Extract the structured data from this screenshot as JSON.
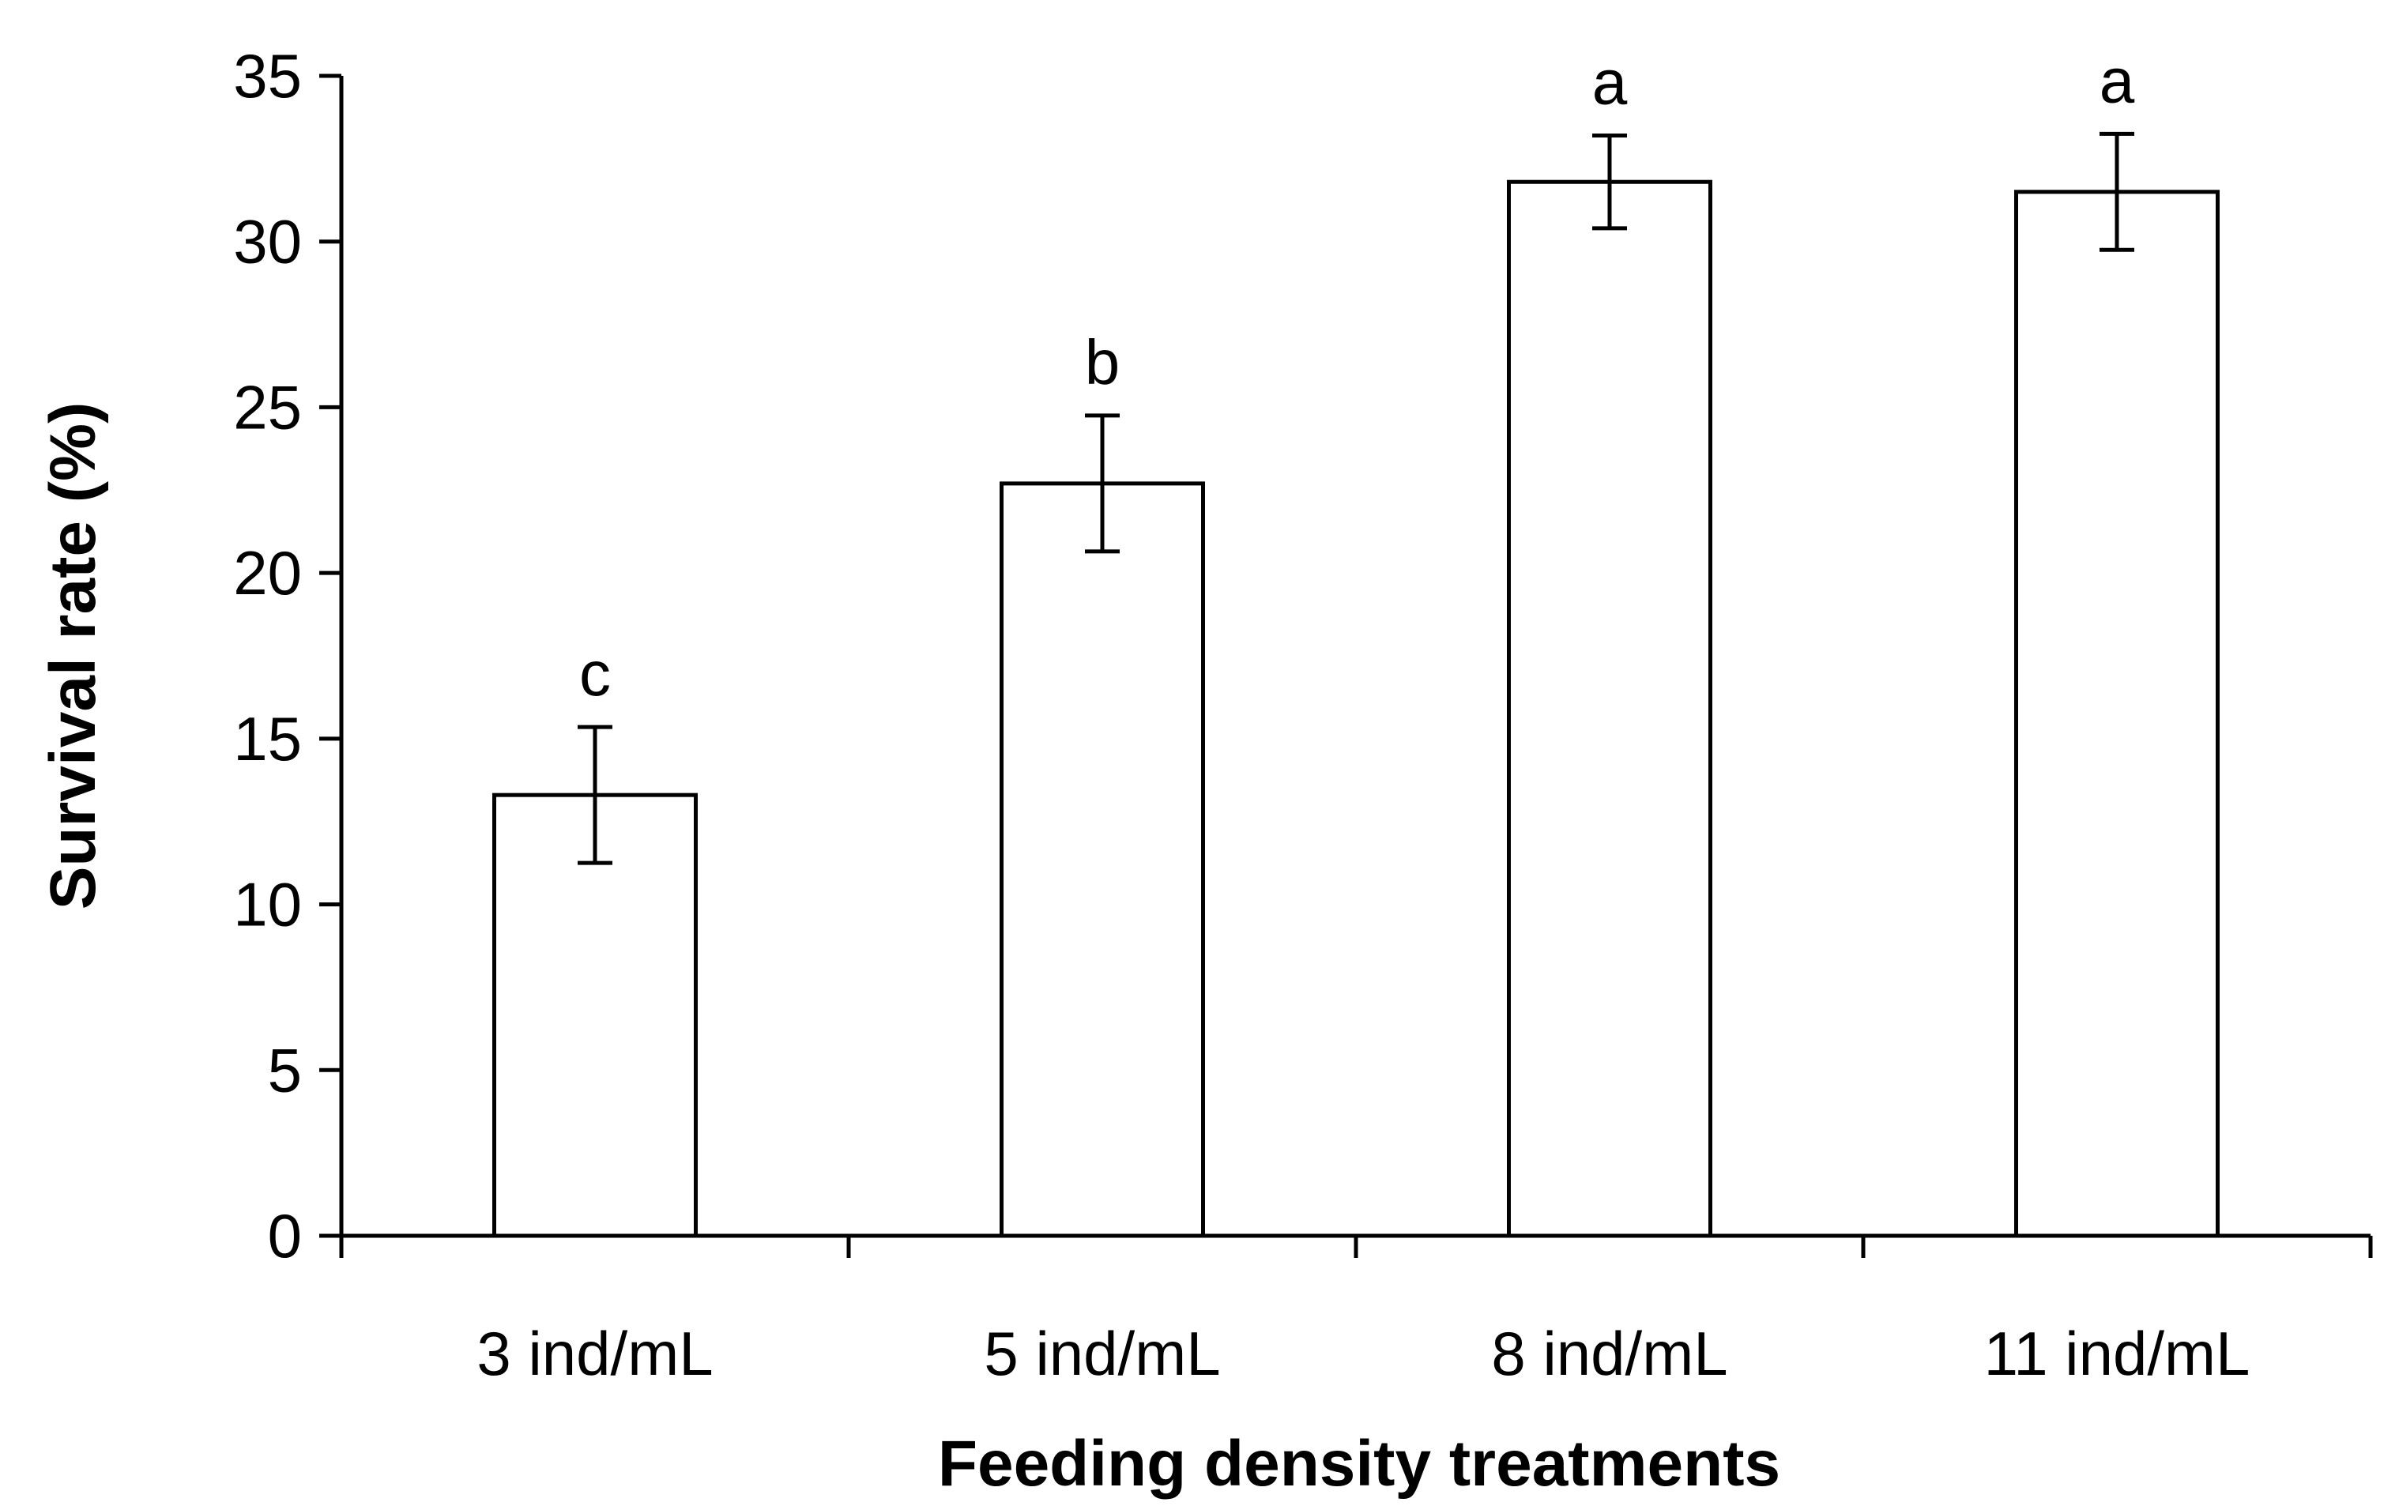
{
  "chart_data": {
    "type": "bar",
    "title": "",
    "xlabel": "Feeding density treatments",
    "ylabel": "Survival rate (%)",
    "ylim": [
      0,
      35
    ],
    "yticks": [
      0,
      5,
      10,
      15,
      20,
      25,
      30,
      35
    ],
    "grid": false,
    "categories": [
      "3 ind/mL",
      "5 ind/mL",
      "8 ind/mL",
      "11 ind/mL"
    ],
    "values": [
      13.3,
      22.7,
      31.8,
      31.5
    ],
    "errors": [
      2.05,
      2.05,
      1.4,
      1.75
    ],
    "significance_labels": [
      "c",
      "b",
      "a",
      "a"
    ]
  }
}
